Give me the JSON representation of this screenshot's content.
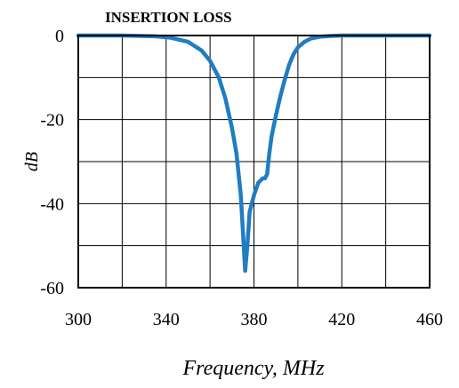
{
  "chart_data": {
    "type": "line",
    "title": "INSERTION LOSS",
    "xlabel": "Frequency, MHz",
    "ylabel": "dB",
    "xlim": [
      300,
      460
    ],
    "ylim": [
      -60,
      0
    ],
    "xticks": [
      300,
      340,
      380,
      420,
      460
    ],
    "yticks": [
      0,
      -20,
      -40,
      -60
    ],
    "x_minor_grid": [
      320,
      360,
      400,
      440
    ],
    "y_minor_grid": [
      -10,
      -30,
      -50
    ],
    "grid": true,
    "series": [
      {
        "color": "#1f7dc1",
        "x": [
          300,
          320,
          335,
          342,
          350,
          356,
          360,
          364,
          367,
          370,
          372,
          374,
          375,
          376,
          377,
          378,
          380,
          382,
          384,
          385,
          386,
          387,
          388,
          390,
          392,
          394,
          396,
          398,
          400,
          403,
          406,
          410,
          415,
          420,
          440,
          460
        ],
        "y": [
          0,
          0,
          -0.2,
          -0.5,
          -1.5,
          -3.5,
          -6,
          -10,
          -15,
          -22,
          -28,
          -38,
          -47,
          -56,
          -50,
          -42,
          -38,
          -35,
          -34,
          -34,
          -33,
          -28,
          -24,
          -19,
          -14.5,
          -10.5,
          -7,
          -4.5,
          -2.8,
          -1.5,
          -0.7,
          -0.3,
          -0.1,
          0,
          0,
          0
        ]
      }
    ]
  }
}
